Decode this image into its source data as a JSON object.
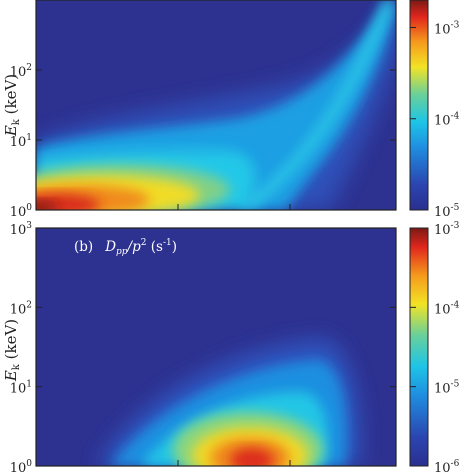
{
  "chart_data": [
    {
      "type": "heatmap",
      "panel_label": "",
      "title": "",
      "ylabel_main": "E",
      "ylabel_sub": "k",
      "ylabel_unit": " (keV)",
      "y_ticks": [
        {
          "base": "10",
          "exp": "0"
        },
        {
          "base": "10",
          "exp": "1"
        },
        {
          "base": "10",
          "exp": "2"
        }
      ],
      "ylim": [
        1,
        1000
      ],
      "yscale": "log",
      "colorbar_ticks": [
        {
          "base": "10",
          "exp": "-5"
        },
        {
          "base": "10",
          "exp": "-4"
        },
        {
          "base": "10",
          "exp": "-3"
        }
      ],
      "colorbar_range": [
        1e-05,
        0.002
      ],
      "colorbar_scale": "log",
      "colormap": "jet",
      "features": [
        {
          "description": "high values at low energy, left side",
          "peak_log_value": -2.7
        },
        {
          "description": "cyan ridge curving upward to the right reaching top near right edge",
          "level_log_value": -3.9
        }
      ]
    },
    {
      "type": "heatmap",
      "panel_label": "(b)",
      "title_main": "D",
      "title_sub": "pp",
      "title_rest": "/p",
      "title_sup": "2",
      "title_unit": " (s",
      "title_unit_sup": "-1",
      "title_close": ")",
      "ylabel_main": "E",
      "ylabel_sub": "k",
      "ylabel_unit": " (keV)",
      "y_ticks": [
        {
          "base": "10",
          "exp": "0"
        },
        {
          "base": "10",
          "exp": "1"
        },
        {
          "base": "10",
          "exp": "2"
        },
        {
          "base": "10",
          "exp": "3"
        }
      ],
      "ylim": [
        1,
        1000
      ],
      "yscale": "log",
      "colorbar_ticks": [
        {
          "base": "10",
          "exp": "-6"
        },
        {
          "base": "10",
          "exp": "-5"
        },
        {
          "base": "10",
          "exp": "-4"
        },
        {
          "base": "10",
          "exp": "-3"
        }
      ],
      "colorbar_range": [
        1e-06,
        0.001
      ],
      "colorbar_scale": "log",
      "colormap": "jet",
      "features": [
        {
          "description": "peak near bottom center",
          "peak_log_value": -3.1
        }
      ]
    }
  ]
}
